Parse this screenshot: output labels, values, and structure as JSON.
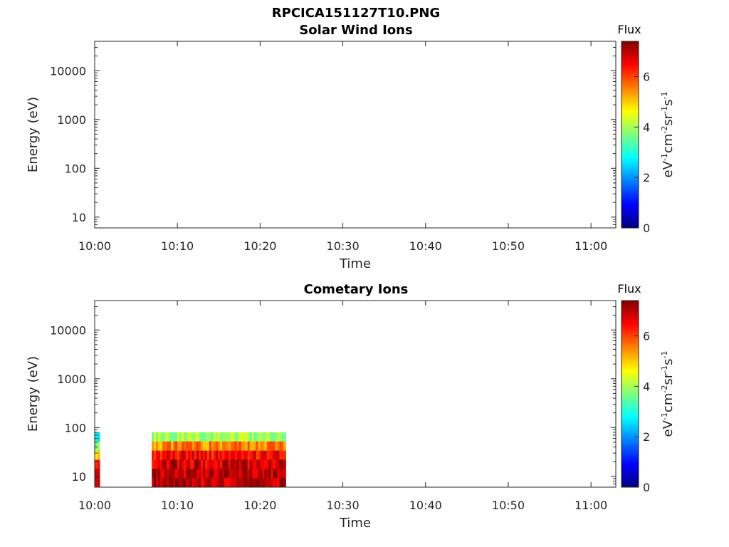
{
  "figure": {
    "title": "RPCICA151127T10.PNG"
  },
  "colorbar": {
    "label": "Flux",
    "unit_text": {
      "base1": "eV",
      "sup1": "-1",
      "base2": "cm",
      "sup2": "-2",
      "base3": "sr",
      "sup3": "-1",
      "base4": "s",
      "sup4": "-1"
    },
    "range": [
      0,
      7.4
    ],
    "ticks": [
      0,
      2,
      4,
      6
    ],
    "colormap": [
      "#00007f",
      "#0000ff",
      "#007fff",
      "#00ffff",
      "#7fff7f",
      "#ffff00",
      "#ff7f00",
      "#ff0000",
      "#7f0000"
    ]
  },
  "chart_data": [
    {
      "type": "heatmap",
      "title": "Solar Wind Ions",
      "xlabel": "Time",
      "ylabel": "Energy (eV)",
      "x_ticks": [
        "10:00",
        "10:10",
        "10:20",
        "10:30",
        "10:40",
        "10:50",
        "11:00"
      ],
      "x_tick_minutes": [
        0,
        10,
        20,
        30,
        40,
        50,
        60
      ],
      "xlim_minutes": [
        0,
        63
      ],
      "y_scale": "log",
      "y_ticks": [
        "10",
        "100",
        "1000",
        "10000"
      ],
      "y_tick_values": [
        10,
        100,
        1000,
        10000
      ],
      "ylim": [
        6,
        40000
      ],
      "regions": []
    },
    {
      "type": "heatmap",
      "title": "Cometary Ions",
      "xlabel": "Time",
      "ylabel": "Energy (eV)",
      "x_ticks": [
        "10:00",
        "10:10",
        "10:20",
        "10:30",
        "10:40",
        "10:50",
        "11:00"
      ],
      "x_tick_minutes": [
        0,
        10,
        20,
        30,
        40,
        50,
        60
      ],
      "xlim_minutes": [
        0,
        63
      ],
      "y_scale": "log",
      "y_ticks": [
        "10",
        "100",
        "1000",
        "10000"
      ],
      "y_tick_values": [
        10,
        100,
        1000,
        10000
      ],
      "ylim": [
        6,
        40000
      ],
      "regions": [
        {
          "t_start": 0.0,
          "t_end": 0.6,
          "e_min": 6,
          "e_max": 80,
          "flux_profile": [
            6.5,
            7.0,
            6.5,
            5.0,
            3.5,
            3.0
          ]
        },
        {
          "t_start": 6.9,
          "t_end": 23.1,
          "e_min": 6,
          "e_max": 80,
          "flux_profile": [
            7.0,
            7.0,
            6.8,
            6.5,
            5.5,
            4.0
          ]
        }
      ]
    }
  ]
}
